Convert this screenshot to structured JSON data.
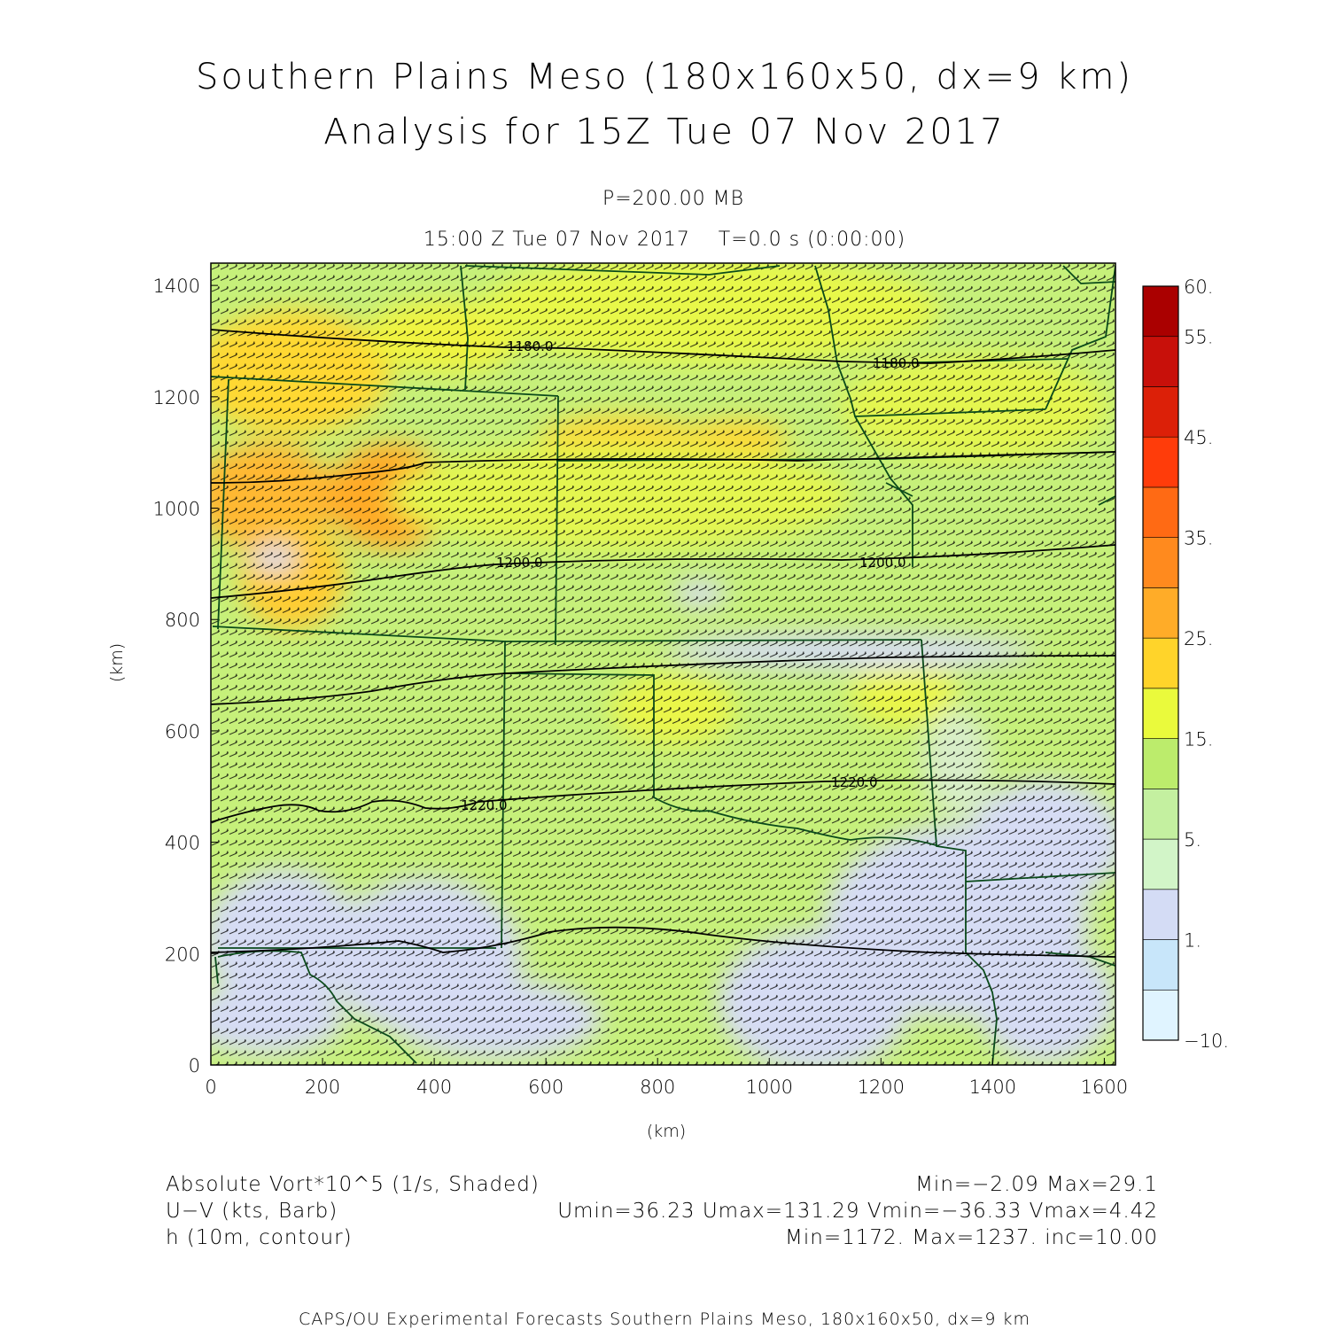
{
  "title": {
    "line1": "Southern Plains Meso (180x160x50, dx=9 km)",
    "line2": "Analysis for 15Z Tue 07 Nov 2017"
  },
  "subtitle": {
    "pressure": "P=200.00 MB",
    "time": "15:00 Z Tue 07 Nov 2017    T=0.0 s (0:00:00)"
  },
  "axes": {
    "x_label": "(km)",
    "y_label": "(km)",
    "x_range": [
      0,
      1620
    ],
    "y_range": [
      0,
      1440
    ],
    "x_ticks": [
      "0",
      "200",
      "400",
      "600",
      "800",
      "1000",
      "1200",
      "1400",
      "1600"
    ],
    "x_tick_values": [
      0,
      200,
      400,
      600,
      800,
      1000,
      1200,
      1400,
      1600
    ],
    "y_ticks": [
      "0",
      "200",
      "400",
      "600",
      "800",
      "1000",
      "1200",
      "1400"
    ],
    "y_tick_values": [
      0,
      200,
      400,
      600,
      800,
      1000,
      1200,
      1400
    ]
  },
  "colorbar": {
    "labels": [
      "60.",
      "55.",
      "45.",
      "35.",
      "25.",
      "15.",
      "5.",
      "1.",
      "−10."
    ],
    "colors": [
      "#e0f4ff",
      "#c8e6fa",
      "#d4dcf5",
      "#d2f5c8",
      "#c4f0a0",
      "#bcec6c",
      "#eafa3c",
      "#ffd42a",
      "#ffac28",
      "#ff8a1e",
      "#ff6a14",
      "#ff3c0a",
      "#dc2008",
      "#c8100a",
      "#aa0000"
    ]
  },
  "contour_labels": [
    "1180.0",
    "1180.0",
    "1200.0",
    "1200.0",
    "1220.0",
    "1220.0"
  ],
  "legend": {
    "left": [
      "Absolute Vort*10^5 (1/s, Shaded)",
      "U−V (kts, Barb)",
      "h (10m, contour)"
    ],
    "right": [
      "Min=−2.09  Max=29.1",
      "Umin=36.23  Umax=131.29  Vmin=−36.33  Vmax=4.42",
      "Min=1172.  Max=1237.  inc=10.00"
    ]
  },
  "footer": "CAPS/OU Experimental Forecasts   Southern Plains Meso, 180x160x50, dx=9 km",
  "colors": {
    "background_field": "#c6f07a",
    "contour": "#000000",
    "border": "#0a4a1a",
    "barb": "#000000"
  }
}
